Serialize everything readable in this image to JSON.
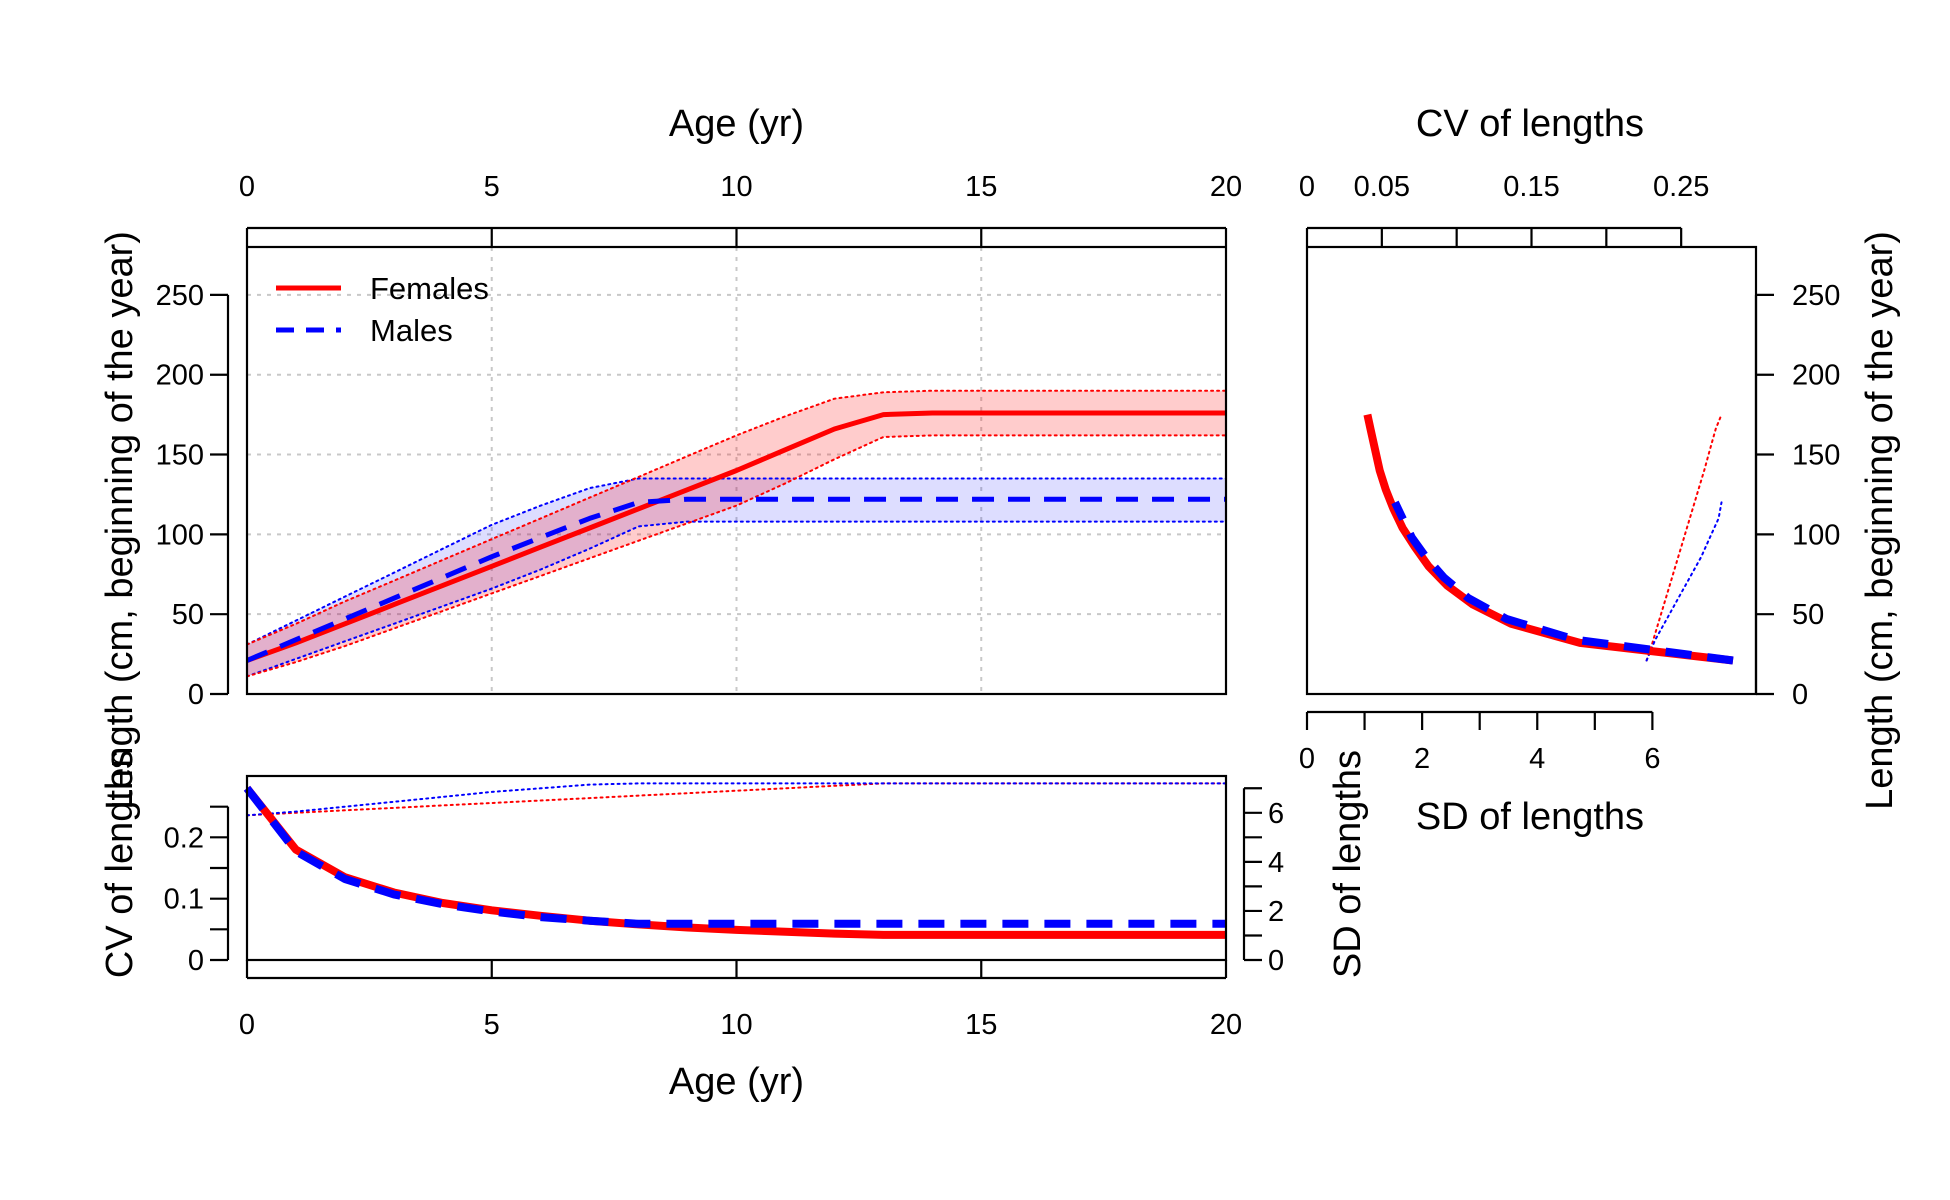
{
  "colors": {
    "females": "#ff0000",
    "males": "#0000ff",
    "female_band": "#ff000033",
    "male_band": "#0000ff22"
  },
  "legend": {
    "position": "top-left",
    "entries": [
      {
        "label": "Females",
        "color": "#ff0000",
        "style": "solid"
      },
      {
        "label": "Males",
        "color": "#0000ff",
        "style": "dashed"
      }
    ]
  },
  "chart_data": [
    {
      "id": "length_at_age",
      "type": "line",
      "xlabel": "Age (yr)",
      "ylabel": "Length (cm, beginning of the year)",
      "xlim": [
        0,
        20
      ],
      "ylim": [
        0,
        280
      ],
      "xticks": [
        "0",
        "5",
        "10",
        "15",
        "20"
      ],
      "yticks": [
        "0",
        "50",
        "100",
        "150",
        "200",
        "250"
      ],
      "grid": true,
      "series": [
        {
          "name": "Females",
          "x": [
            0,
            1,
            2,
            3,
            4,
            5,
            6,
            7,
            8,
            9,
            10,
            11,
            12,
            13,
            14,
            15,
            16,
            17,
            18,
            19,
            20
          ],
          "mean": [
            21,
            32,
            44,
            56,
            68,
            80,
            92,
            104,
            116,
            128,
            140,
            153,
            166,
            175,
            176,
            176,
            176,
            176,
            176,
            176,
            176
          ],
          "upper": [
            31,
            44,
            58,
            71,
            84,
            97,
            110,
            123,
            136,
            149,
            162,
            174,
            185,
            189,
            190,
            190,
            190,
            190,
            190,
            190,
            190
          ],
          "lower": [
            11,
            20,
            30,
            41,
            52,
            63,
            74,
            85,
            96,
            107,
            118,
            132,
            147,
            161,
            162,
            162,
            162,
            162,
            162,
            162,
            162
          ]
        },
        {
          "name": "Males",
          "x": [
            0,
            1,
            2,
            3,
            4,
            5,
            6,
            7,
            8,
            9,
            10,
            11,
            12,
            13,
            14,
            15,
            16,
            17,
            18,
            19,
            20
          ],
          "mean": [
            21,
            34,
            47,
            60,
            73,
            86,
            98,
            110,
            120,
            122,
            122,
            122,
            122,
            122,
            122,
            122,
            122,
            122,
            122,
            122,
            122
          ],
          "upper": [
            31,
            46,
            61,
            76,
            91,
            106,
            118,
            129,
            135,
            135,
            135,
            135,
            135,
            135,
            135,
            135,
            135,
            135,
            135,
            135,
            135
          ],
          "lower": [
            11,
            22,
            33,
            44,
            55,
            66,
            78,
            91,
            105,
            108,
            108,
            108,
            108,
            108,
            108,
            108,
            108,
            108,
            108,
            108,
            108
          ]
        }
      ]
    },
    {
      "id": "cv_sd_at_age",
      "type": "line",
      "xlabel": "Age (yr)",
      "ylabel_left": "CV of lengths",
      "ylabel_right": "SD of lengths",
      "xlim": [
        0,
        20
      ],
      "ylim_cv": [
        0,
        0.3
      ],
      "ylim_sd": [
        0,
        7.5
      ],
      "xticks": [
        "0",
        "5",
        "10",
        "15",
        "20"
      ],
      "yticks_cv": [
        "0",
        "0.1",
        "0.2"
      ],
      "yticks_sd": [
        "0",
        "2",
        "4",
        "6"
      ],
      "series": [
        {
          "name": "Females",
          "x": [
            0,
            1,
            2,
            3,
            4,
            5,
            6,
            7,
            8,
            9,
            10,
            11,
            12,
            13,
            14,
            15,
            16,
            17,
            18,
            19,
            20
          ],
          "cv": [
            0.28,
            0.18,
            0.135,
            0.11,
            0.093,
            0.081,
            0.072,
            0.064,
            0.058,
            0.053,
            0.049,
            0.046,
            0.043,
            0.041,
            0.041,
            0.041,
            0.041,
            0.041,
            0.041,
            0.041,
            0.041
          ],
          "sd": [
            5.9,
            6.0,
            6.1,
            6.2,
            6.3,
            6.4,
            6.5,
            6.6,
            6.7,
            6.8,
            6.9,
            7.0,
            7.1,
            7.2,
            7.2,
            7.2,
            7.2,
            7.2,
            7.2,
            7.2,
            7.2
          ]
        },
        {
          "name": "Males",
          "x": [
            0,
            1,
            2,
            3,
            4,
            5,
            6,
            7,
            8,
            9,
            10,
            11,
            12,
            13,
            14,
            15,
            16,
            17,
            18,
            19,
            20
          ],
          "cv": [
            0.28,
            0.177,
            0.132,
            0.107,
            0.091,
            0.079,
            0.07,
            0.064,
            0.059,
            0.059,
            0.059,
            0.059,
            0.059,
            0.059,
            0.059,
            0.059,
            0.059,
            0.059,
            0.059,
            0.059,
            0.059
          ],
          "sd": [
            5.9,
            6.05,
            6.25,
            6.45,
            6.65,
            6.85,
            7.0,
            7.15,
            7.2,
            7.2,
            7.2,
            7.2,
            7.2,
            7.2,
            7.2,
            7.2,
            7.2,
            7.2,
            7.2,
            7.2,
            7.2
          ]
        }
      ]
    },
    {
      "id": "length_vs_variability",
      "type": "line",
      "xlabel_bottom": "SD of lengths",
      "xlabel_top": "CV of lengths",
      "ylabel": "Length (cm, beginning of the year)",
      "xlim_sd": [
        0,
        7.8
      ],
      "xlim_cv": [
        0,
        0.3
      ],
      "ylim": [
        0,
        280
      ],
      "xticks_sd": [
        "0",
        "2",
        "4",
        "6"
      ],
      "xticks_cv": [
        "0",
        "0.05",
        "0.15",
        "0.25"
      ],
      "yticks": [
        "0",
        "50",
        "100",
        "150",
        "200",
        "250"
      ],
      "series": [
        {
          "name": "Females",
          "cv": [
            0.28,
            0.18,
            0.135,
            0.11,
            0.093,
            0.081,
            0.072,
            0.064,
            0.058,
            0.053,
            0.049,
            0.046,
            0.043,
            0.041
          ],
          "sd": [
            5.9,
            6.0,
            6.1,
            6.2,
            6.3,
            6.4,
            6.5,
            6.6,
            6.7,
            6.8,
            6.9,
            7.0,
            7.1,
            7.2
          ],
          "length": [
            21,
            32,
            44,
            56,
            68,
            80,
            92,
            104,
            116,
            128,
            140,
            153,
            166,
            175
          ]
        },
        {
          "name": "Males",
          "cv": [
            0.28,
            0.177,
            0.132,
            0.107,
            0.091,
            0.079,
            0.07,
            0.064,
            0.059
          ],
          "sd": [
            5.9,
            6.05,
            6.25,
            6.45,
            6.65,
            6.85,
            7.0,
            7.15,
            7.2
          ],
          "length": [
            21,
            34,
            47,
            60,
            73,
            86,
            98,
            110,
            120
          ]
        }
      ]
    }
  ]
}
